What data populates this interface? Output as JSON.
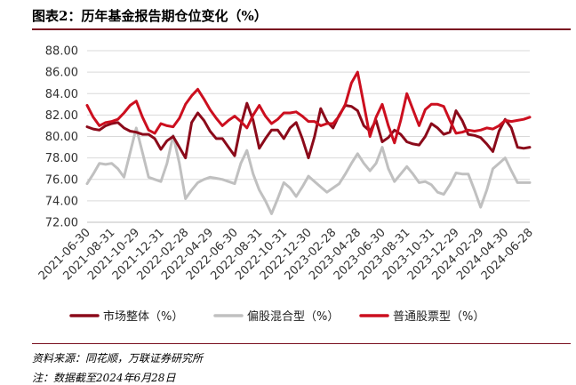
{
  "title": "图表2：历年基金报告期仓位变化（%）",
  "source": "资料来源：同花顺，万联证券研究所",
  "note": "注：数据截至2024年6月28日",
  "chart_data": {
    "type": "line",
    "title": "图表2：历年基金报告期仓位变化（%）",
    "xlabel": "",
    "ylabel": "",
    "ylim": [
      72,
      88
    ],
    "yticks": [
      "72.00",
      "74.00",
      "76.00",
      "78.00",
      "80.00",
      "82.00",
      "84.00",
      "86.00",
      "88.00"
    ],
    "grid": "horizontal",
    "legend": "bottom",
    "x": [
      "2021-06-30",
      "2021-07-16",
      "2021-07-30",
      "2021-08-13",
      "2021-08-31",
      "2021-09-15",
      "2021-09-30",
      "2021-10-15",
      "2021-10-29",
      "2021-11-15",
      "2021-11-30",
      "2021-12-15",
      "2021-12-31",
      "2022-01-14",
      "2022-01-28",
      "2022-02-15",
      "2022-02-28",
      "2022-03-15",
      "2022-03-31",
      "2022-04-15",
      "2022-04-29",
      "2022-05-16",
      "2022-05-31",
      "2022-06-15",
      "2022-06-30",
      "2022-07-15",
      "2022-07-29",
      "2022-08-15",
      "2022-08-31",
      "2022-09-15",
      "2022-09-30",
      "2022-10-14",
      "2022-10-31",
      "2022-11-15",
      "2022-11-30",
      "2022-12-15",
      "2022-12-30",
      "2023-01-13",
      "2023-01-31",
      "2023-02-15",
      "2023-02-28",
      "2023-03-15",
      "2023-03-31",
      "2023-04-14",
      "2023-04-28",
      "2023-05-15",
      "2023-05-31",
      "2023-06-15",
      "2023-06-30",
      "2023-07-14",
      "2023-07-31",
      "2023-08-15",
      "2023-08-31",
      "2023-09-15",
      "2023-09-28",
      "2023-10-13",
      "2023-10-31",
      "2023-11-15",
      "2023-11-30",
      "2023-12-15",
      "2023-12-29",
      "2024-01-15",
      "2024-01-31",
      "2024-02-09",
      "2024-02-29",
      "2024-03-15",
      "2024-03-29",
      "2024-04-15",
      "2024-04-30",
      "2024-05-15",
      "2024-05-31",
      "2024-06-14",
      "2024-06-28"
    ],
    "xticks": [
      "2021-06-30",
      "2021-08-31",
      "2021-10-29",
      "2021-12-31",
      "2022-02-28",
      "2022-04-29",
      "2022-06-30",
      "2022-08-31",
      "2022-10-31",
      "2022-12-30",
      "2023-02-28",
      "2023-04-28",
      "2023-06-30",
      "2023-08-31",
      "2023-10-31",
      "2023-12-29",
      "2024-02-29",
      "2024-04-30",
      "2024-06-28"
    ],
    "series": [
      {
        "name": "市场整体（%）",
        "color": "#8b0a1a",
        "values": [
          80.9,
          80.7,
          80.6,
          81.0,
          81.2,
          81.3,
          80.8,
          80.5,
          80.4,
          80.2,
          80.2,
          79.8,
          78.8,
          79.6,
          80.0,
          79.0,
          78.0,
          81.3,
          82.2,
          81.5,
          80.5,
          79.8,
          79.8,
          79.0,
          78.2,
          81.0,
          83.1,
          81.5,
          78.9,
          79.8,
          80.6,
          80.6,
          79.8,
          80.8,
          81.3,
          79.8,
          78.0,
          80.0,
          82.6,
          81.4,
          80.8,
          82.0,
          82.9,
          82.8,
          82.4,
          81.0,
          80.5,
          81.5,
          79.5,
          79.9,
          80.6,
          80.2,
          79.5,
          79.3,
          79.2,
          80.0,
          81.2,
          80.8,
          80.2,
          80.4,
          82.4,
          81.5,
          80.2,
          80.1,
          79.9,
          79.3,
          78.6,
          80.5,
          81.6,
          80.8,
          79.0,
          78.9,
          79.0
        ]
      },
      {
        "name": "偏股混合型（%）",
        "color": "#c0c0c0",
        "values": [
          75.6,
          76.5,
          77.5,
          77.4,
          77.5,
          77.0,
          76.2,
          78.5,
          80.8,
          78.5,
          76.2,
          76.0,
          75.8,
          77.5,
          80.1,
          77.5,
          74.2,
          75.0,
          75.7,
          76.0,
          76.2,
          76.1,
          76.0,
          75.8,
          75.6,
          77.5,
          78.7,
          76.5,
          75.0,
          74.0,
          72.8,
          74.2,
          75.7,
          75.2,
          74.4,
          75.3,
          76.3,
          75.8,
          75.3,
          74.8,
          75.2,
          75.6,
          76.5,
          77.5,
          78.4,
          77.5,
          76.8,
          77.5,
          79.0,
          77.0,
          75.8,
          76.5,
          77.2,
          76.5,
          75.7,
          75.8,
          75.5,
          74.8,
          74.6,
          75.5,
          76.6,
          76.5,
          76.5,
          75.0,
          73.4,
          75.0,
          77.0,
          77.5,
          78.0,
          76.8,
          75.7,
          75.7,
          75.7
        ]
      },
      {
        "name": "普通股票型（%）",
        "color": "#cc0f1f",
        "values": [
          82.9,
          81.8,
          81.0,
          81.3,
          81.4,
          81.6,
          82.2,
          82.9,
          83.3,
          81.8,
          80.6,
          80.3,
          81.2,
          81.0,
          80.9,
          81.7,
          83.0,
          83.8,
          84.4,
          83.5,
          82.5,
          81.7,
          81.0,
          81.5,
          81.9,
          81.4,
          80.8,
          82.0,
          82.9,
          81.9,
          81.2,
          81.6,
          82.2,
          82.2,
          82.3,
          81.9,
          81.4,
          81.4,
          81.0,
          81.2,
          81.2,
          81.9,
          83.0,
          85.0,
          86.0,
          83.0,
          80.0,
          81.8,
          83.0,
          81.0,
          79.4,
          81.5,
          84.0,
          82.5,
          81.0,
          82.5,
          83.0,
          83.0,
          82.8,
          81.5,
          80.3,
          80.4,
          80.6,
          80.5,
          80.6,
          80.8,
          80.7,
          81.0,
          81.5,
          81.4,
          81.5,
          81.6,
          81.8
        ]
      }
    ]
  }
}
